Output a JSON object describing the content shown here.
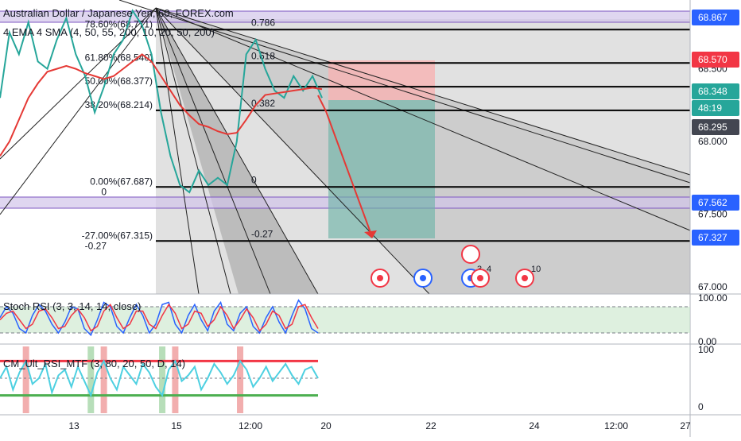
{
  "header": {
    "symbol_title": "Australian Dollar / Japanese Yen, 60, FOREX.com",
    "indicator_line": "4 EMA 4 SMA (4, 50, 55, 200, 10, 20, 50, 200)"
  },
  "chart_data": [
    {
      "type": "line",
      "title": "Australian Dollar / Japanese Yen, 60, FOREX.com",
      "y_axis": {
        "range": [
          66.95,
          68.93
        ],
        "ticks": [
          "68.500",
          "68.000",
          "67.500",
          "67.000"
        ]
      },
      "x_axis": {
        "ticks": [
          "13",
          "15",
          "12:00",
          "20",
          "22",
          "24",
          "12:00",
          "27"
        ]
      },
      "price_tags": [
        {
          "value": "68.867",
          "color": "#2962ff"
        },
        {
          "value": "68.570",
          "color": "#f23645"
        },
        {
          "value": "68.348",
          "color": "#26a69a"
        },
        {
          "value": "48:19",
          "color": "#26a69a"
        },
        {
          "value": "68.295",
          "color": "#434651"
        },
        {
          "value": "67.562",
          "color": "#2962ff"
        },
        {
          "value": "67.327",
          "color": "#2962ff"
        }
      ],
      "fib_levels": [
        {
          "ratio": "0.786",
          "price": 68.77,
          "left_label": "78.60%(68.771)",
          "right_label": "0.786"
        },
        {
          "ratio": "0.618",
          "price": 68.54,
          "left_label": "61.80%(68.540)",
          "right_label": "0.618"
        },
        {
          "ratio": "0.5",
          "price": 68.377,
          "left_label": "50.00%(68.377)",
          "right_label": ""
        },
        {
          "ratio": "0.382",
          "price": 68.214,
          "left_label": "38.20%(68.214)",
          "right_label": "0.382"
        },
        {
          "ratio": "0",
          "price": 67.687,
          "left_label": "0.00%(67.687)",
          "right_label": "0",
          "left_sub": "0"
        },
        {
          "ratio": "-0.27",
          "price": 67.315,
          "left_label": "-27.00%(67.315)",
          "right_label": "-0.27",
          "left_sub": "-0.27"
        }
      ],
      "price_series": [
        68.3,
        68.75,
        68.6,
        68.82,
        68.55,
        68.5,
        68.7,
        68.85,
        68.6,
        68.45,
        68.2,
        68.38,
        68.6,
        68.7,
        68.9,
        68.8,
        68.6,
        68.2,
        67.9,
        67.7,
        67.65,
        67.8,
        67.7,
        67.75,
        67.7,
        68.0,
        68.6,
        68.7,
        68.5,
        68.35,
        68.3,
        68.45,
        68.35,
        68.45,
        68.3
      ],
      "ema_series": [
        67.9,
        68.0,
        68.15,
        68.3,
        68.4,
        68.48,
        68.5,
        68.52,
        68.5,
        68.47,
        68.45,
        68.43,
        68.45,
        68.5,
        68.55,
        68.6,
        68.55,
        68.45,
        68.35,
        68.25,
        68.18,
        68.12,
        68.1,
        68.07,
        68.05,
        68.06,
        68.15,
        68.25,
        68.32,
        68.33,
        68.34,
        68.35,
        68.36,
        68.37,
        68.36
      ],
      "projection_arrow": {
        "from": 68.35,
        "to": 67.33
      },
      "position_box": {
        "entry": 68.35,
        "stop": 68.57,
        "target": 67.33
      },
      "event_markers": [
        {
          "label": "",
          "color": "#f23645"
        },
        {
          "label": "",
          "color": "#2962ff"
        },
        {
          "label": "3",
          "color": "#2962ff"
        },
        {
          "label": "4",
          "color": "#f23645"
        },
        {
          "label": "10",
          "color": "#f23645"
        }
      ]
    },
    {
      "type": "line",
      "title": "Stoch RSI (3, 3, 14, 14, close)",
      "y_axis": {
        "range": [
          0,
          100
        ],
        "ticks": [
          "100.00",
          "0.00"
        ]
      },
      "bands": [
        20,
        80
      ],
      "k_series": [
        55,
        80,
        65,
        30,
        20,
        60,
        85,
        70,
        40,
        20,
        45,
        80,
        75,
        30,
        15,
        50,
        90,
        80,
        35,
        20,
        55,
        85,
        60,
        20,
        40,
        85,
        90,
        40,
        20,
        60,
        85,
        50,
        25,
        70,
        90,
        40,
        25,
        65,
        80,
        35,
        20,
        55,
        80,
        45,
        20,
        60,
        95,
        75,
        30,
        20
      ],
      "d_series": [
        50,
        65,
        70,
        50,
        30,
        40,
        70,
        75,
        55,
        30,
        35,
        60,
        75,
        55,
        25,
        35,
        70,
        85,
        55,
        30,
        40,
        70,
        70,
        40,
        30,
        60,
        85,
        65,
        30,
        40,
        70,
        65,
        35,
        50,
        80,
        60,
        30,
        50,
        75,
        55,
        25,
        40,
        70,
        60,
        30,
        40,
        80,
        85,
        55,
        30
      ]
    },
    {
      "type": "line",
      "title": "CM_Ult_RSI_MTF (3, 80, 20, 50, D, 14)",
      "y_axis": {
        "range": [
          0,
          100
        ],
        "ticks": [
          "100",
          "0"
        ]
      },
      "bands": [
        20,
        50,
        80
      ],
      "rsi_series": [
        50,
        70,
        30,
        60,
        80,
        40,
        50,
        75,
        25,
        55,
        65,
        35,
        70,
        45,
        20,
        60,
        80,
        50,
        30,
        70,
        55,
        40,
        75,
        60,
        35,
        20,
        65,
        80,
        45,
        55,
        70,
        30,
        50,
        75,
        60,
        40,
        55,
        80,
        65,
        35,
        50,
        70,
        45,
        60,
        75,
        55,
        40,
        65,
        70,
        50
      ]
    }
  ]
}
